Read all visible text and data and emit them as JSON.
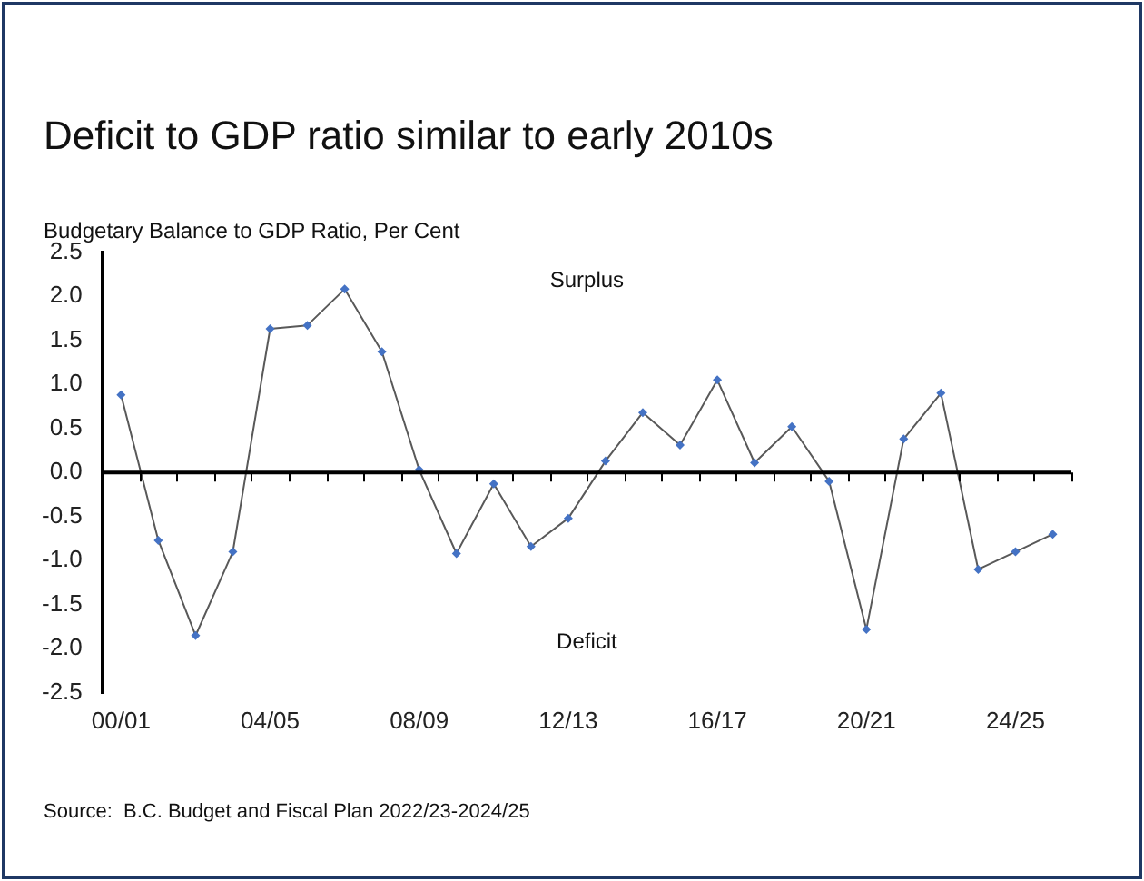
{
  "chart_data": {
    "type": "line",
    "title": "Deficit to GDP ratio similar to early 2010s",
    "ylabel": "Budgetary Balance to GDP Ratio, Per Cent",
    "categories": [
      "00/01",
      null,
      null,
      null,
      "04/05",
      null,
      null,
      null,
      "08/09",
      null,
      null,
      null,
      "12/13",
      null,
      null,
      null,
      "16/17",
      null,
      null,
      null,
      "20/21",
      null,
      null,
      null,
      "24/25",
      null
    ],
    "series": [
      {
        "color": "#4472c4",
        "values": [
          0.88,
          -0.77,
          -1.85,
          -0.9,
          1.63,
          1.67,
          2.08,
          1.37,
          0.03,
          -0.92,
          -0.13,
          -0.84,
          -0.52,
          0.13,
          0.68,
          0.31,
          1.05,
          0.11,
          0.52,
          -0.1,
          -1.78,
          0.38,
          0.9,
          -1.1,
          -0.9,
          -0.7
        ]
      }
    ],
    "ylim": [
      -2.5,
      2.5
    ],
    "yticks": [
      -2.5,
      {
        "value": -2,
        "label": "-2.0"
      },
      -1.5,
      {
        "value": -1,
        "label": "-1.0"
      },
      -0.5,
      {
        "value": 0,
        "label": "0.0"
      },
      0.5,
      {
        "value": 1,
        "label": "1.0"
      },
      1.5,
      {
        "value": 2,
        "label": "2.0"
      },
      2.5
    ],
    "ref_lines": [
      {
        "axis": "y",
        "value": 0,
        "color": "#000000",
        "line_style": "solid"
      }
    ],
    "grid": false,
    "legend": false,
    "marker": "diamond",
    "line_style": "solid",
    "annotations": [
      "Surplus",
      "Deficit",
      "Source:  B.C. Budget and Fiscal Plan 2022/23-2024/25"
    ]
  }
}
